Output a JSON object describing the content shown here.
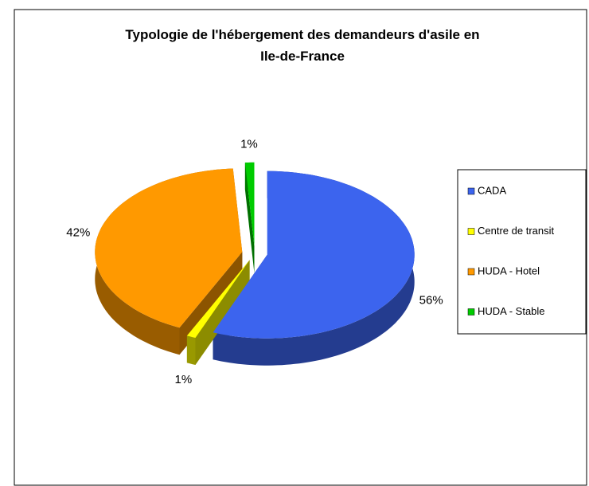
{
  "chart_data": {
    "type": "pie3d",
    "title": "Typologie de l'hébergement des demandeurs d'asile en\nIle-de-France",
    "categories": [
      "CADA",
      "Centre de transit",
      "HUDA - Hotel",
      "HUDA - Stable"
    ],
    "values": [
      56,
      1,
      42,
      1
    ],
    "value_labels": [
      "56%",
      "1%",
      "42%",
      "1%"
    ],
    "colors": [
      "#3c64ee",
      "#ffff00",
      "#ff9900",
      "#00cc00"
    ],
    "legend": "right"
  }
}
